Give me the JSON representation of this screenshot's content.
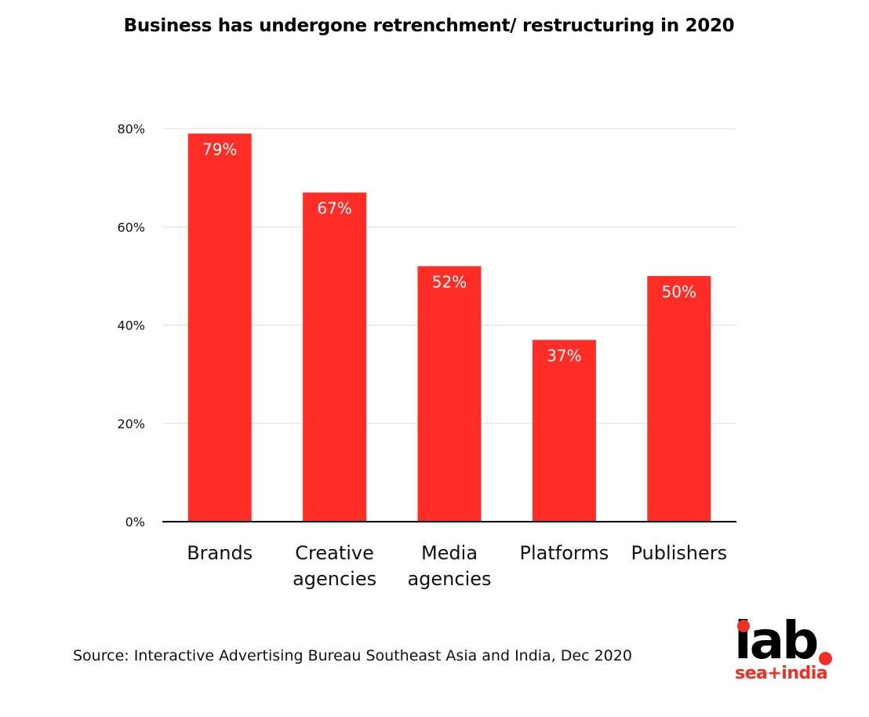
{
  "colors": {
    "bar": "#ff2d26",
    "accent": "#f02e22",
    "grid": "#dddddd",
    "axis": "#000000",
    "text": "#111111"
  },
  "chart_data": {
    "type": "bar",
    "title": "Business has undergone retrenchment/ restructuring in 2020",
    "categories": [
      "Brands",
      "Creative agencies",
      "Media agencies",
      "Platforms",
      "Publishers"
    ],
    "category_lines": [
      [
        "Brands"
      ],
      [
        "Creative",
        "agencies"
      ],
      [
        "Media",
        "agencies"
      ],
      [
        "Platforms"
      ],
      [
        "Publishers"
      ]
    ],
    "values": [
      79,
      67,
      52,
      37,
      50
    ],
    "data_labels": [
      "79%",
      "67%",
      "52%",
      "37%",
      "50%"
    ],
    "y_ticks": [
      0,
      20,
      40,
      60,
      80
    ],
    "y_tick_labels": [
      "0%",
      "20%",
      "40%",
      "60%",
      "80%"
    ],
    "ylim": [
      0,
      80
    ],
    "xlabel": "",
    "ylabel": "",
    "grid": true,
    "legend": "none"
  },
  "footer": {
    "source": "Source: Interactive Advertising Bureau Southeast Asia and India, Dec 2020"
  },
  "logo": {
    "main_text": "iab",
    "sub_text": "sea+india"
  }
}
